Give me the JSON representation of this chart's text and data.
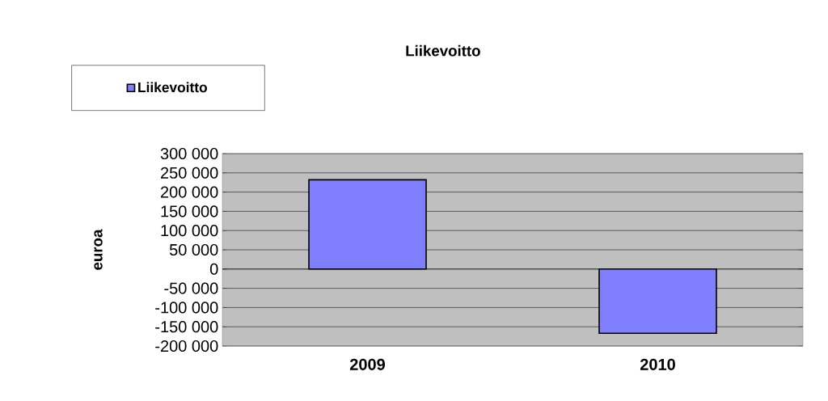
{
  "chart_data": {
    "type": "bar",
    "title": "Liikevoitto",
    "ylabel": "euroa",
    "categories": [
      "2009",
      "2010"
    ],
    "series": [
      {
        "name": "Liikevoitto",
        "color": "#8080ff",
        "values": [
          232000,
          -167000
        ]
      }
    ],
    "ylim": [
      -200000,
      300000
    ],
    "yticks": [
      {
        "value": -200000,
        "label": "-200 000"
      },
      {
        "value": -150000,
        "label": "-150 000"
      },
      {
        "value": -100000,
        "label": "-100 000"
      },
      {
        "value": -50000,
        "label": "-50 000"
      },
      0,
      {
        "value": 50000,
        "label": "50 000"
      },
      {
        "value": 100000,
        "label": "100 000"
      },
      {
        "value": 150000,
        "label": "150 000"
      },
      {
        "value": 200000,
        "label": "200 000"
      },
      {
        "value": 250000,
        "label": "250 000"
      },
      {
        "value": 300000,
        "label": "300 000"
      }
    ],
    "grid": "y",
    "legend": "top left"
  }
}
